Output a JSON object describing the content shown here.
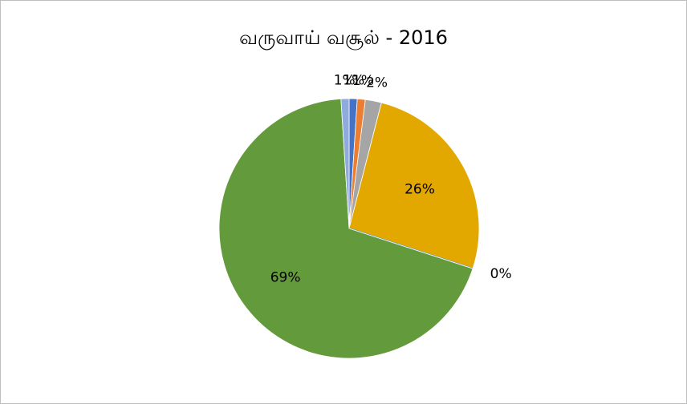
{
  "chart_data": {
    "type": "pie",
    "title": "வருவாய் வசூல் - 2016",
    "values": [
      1,
      1,
      2,
      26,
      0,
      69,
      1
    ],
    "value_labels": [
      "1%",
      "1%",
      "2%",
      "26%",
      "0%",
      "69%",
      "1%"
    ],
    "colors": [
      "#4472c4",
      "#ed7d31",
      "#a5a5a5",
      "#e3a800",
      "#5b9bd5",
      "#639a3c",
      "#8faadc"
    ]
  }
}
